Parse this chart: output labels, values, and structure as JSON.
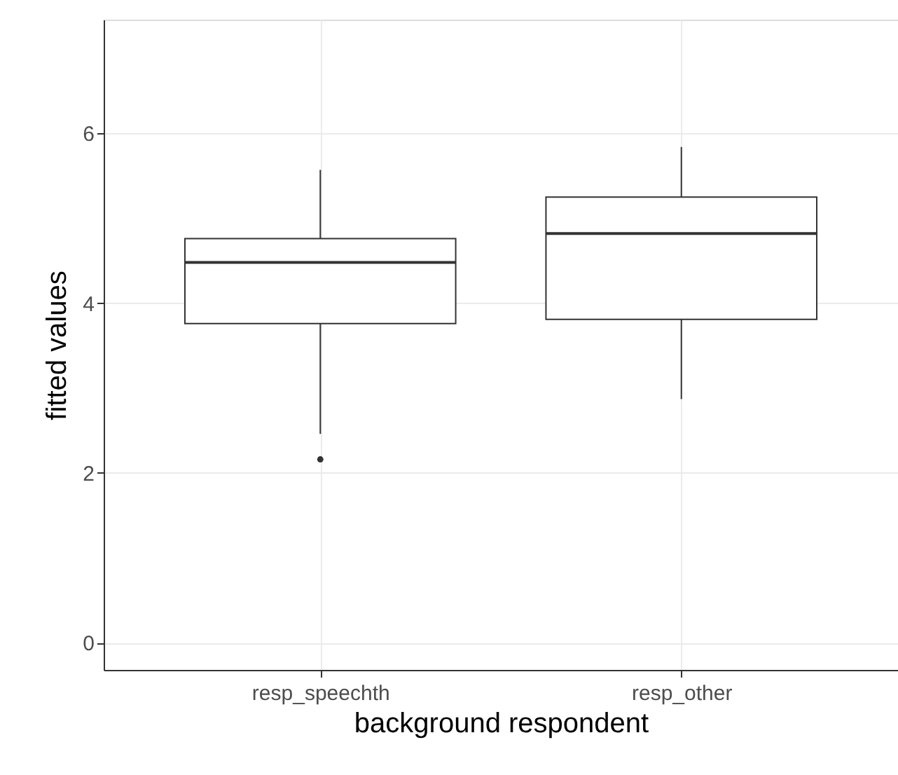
{
  "chart_data": {
    "type": "box",
    "xlabel": "background respondent",
    "ylabel": "fitted values",
    "categories": [
      "resp_speechth",
      "resp_other"
    ],
    "boxes": [
      {
        "low": 2.46,
        "q1": 3.76,
        "median": 4.48,
        "q3": 4.76,
        "high": 5.57,
        "outliers": [
          2.16
        ]
      },
      {
        "low": 2.87,
        "q1": 3.81,
        "median": 4.82,
        "q3": 5.25,
        "high": 5.84
      }
    ],
    "ylim": [
      -0.32,
      7.34
    ],
    "yticks": [
      0,
      2,
      4,
      6
    ],
    "grid": true
  }
}
